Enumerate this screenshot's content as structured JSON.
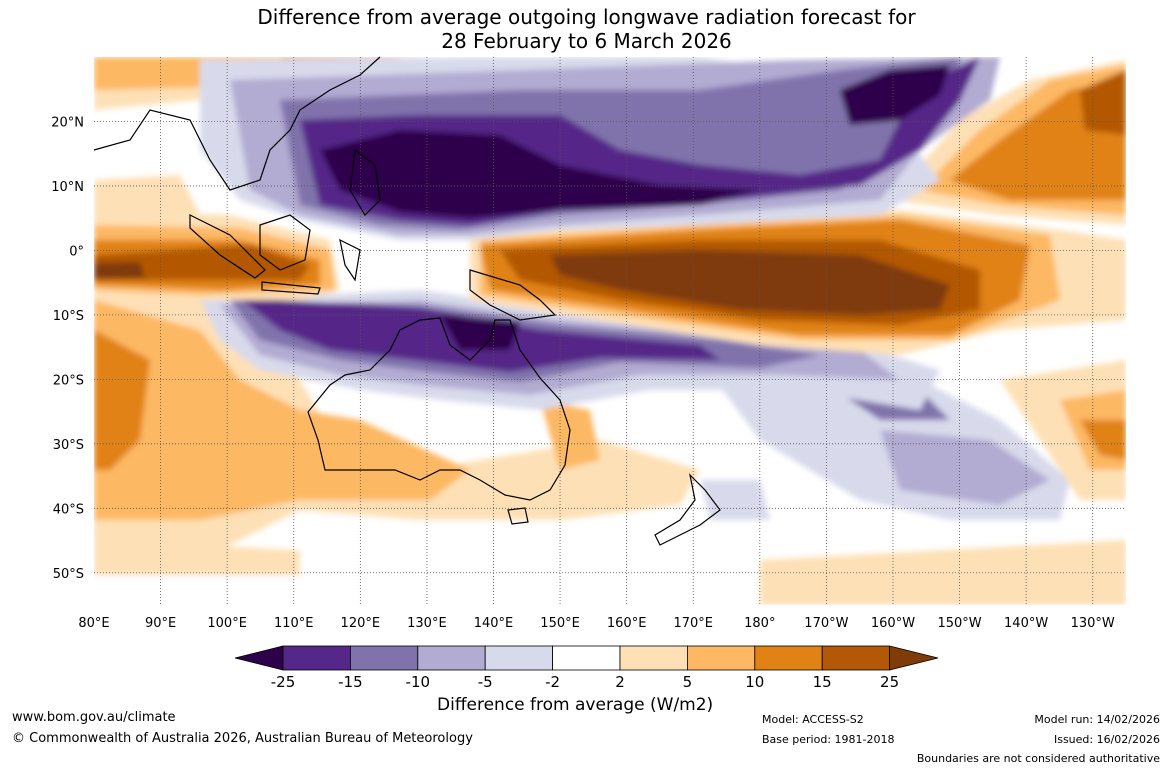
{
  "title": {
    "line1": "Difference from average outgoing longwave radiation forecast for",
    "line2": "28 February to 6 March 2026"
  },
  "map": {
    "lon_labels": [
      "80°E",
      "90°E",
      "100°E",
      "110°E",
      "120°E",
      "130°E",
      "140°E",
      "150°E",
      "160°E",
      "170°E",
      "180°",
      "170°W",
      "160°W",
      "150°W",
      "140°W",
      "130°W"
    ],
    "lat_labels": [
      "20°N",
      "10°N",
      "0°",
      "10°S",
      "20°S",
      "30°S",
      "40°S",
      "50°S"
    ],
    "lon_range": [
      80,
      235
    ],
    "lat_range": [
      -55,
      30
    ]
  },
  "colorbar": {
    "ticks": [
      "-25",
      "-15",
      "-10",
      "-5",
      "-2",
      "2",
      "5",
      "10",
      "15",
      "25"
    ],
    "label": "Difference from average (W/m2)",
    "colors": {
      "lt_-25": "#2d004b",
      "-25_-15": "#542788",
      "-15_-10": "#8073ac",
      "-10_-5": "#b2abd2",
      "-5_-2": "#d8daeb",
      "-2_2": "#ffffff",
      "2_5": "#fee0b6",
      "5_10": "#fdb863",
      "10_15": "#e08214",
      "15_25": "#b35806",
      "gt_25": "#7f3b08"
    }
  },
  "footer": {
    "website": "www.bom.gov.au/climate",
    "copyright": "© Commonwealth of Australia 2026, Australian Bureau of Meteorology",
    "model": "Model: ACCESS-S2",
    "base_period": "Base period: 1981-2018",
    "model_run": "Model run: 14/02/2026",
    "issued": "Issued: 16/02/2026",
    "disclaimer": "Boundaries are not considered authoritative"
  }
}
